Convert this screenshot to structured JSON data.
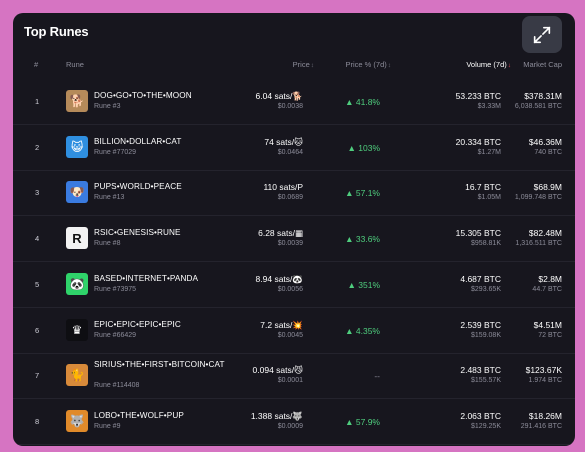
{
  "panel": {
    "title": "Top Runes"
  },
  "columns": {
    "rank": "#",
    "rune": "Rune",
    "price": "Price",
    "price_pct": "Price % (7d)",
    "volume": "Volume (7d)",
    "market_cap": "Market Cap"
  },
  "rows": [
    {
      "rank": "1",
      "name": "DOG•GO•TO•THE•MOON",
      "number": "Rune #3",
      "price": "6.04 sats/🐕",
      "price_usd": "$0.0038",
      "change": "▲ 41.8%",
      "volume": "53.233 BTC",
      "volume_usd": "$3.33M",
      "market_cap": "$378.31M",
      "cap_sub": "6,038.581 BTC",
      "logo_icon": "dog-icon",
      "logo_glyph": "🐕",
      "logo_bg": "#b58a5a"
    },
    {
      "rank": "2",
      "name": "BILLION•DOLLAR•CAT",
      "number": "Rune #77029",
      "price": "74 sats/🐱",
      "price_usd": "$0.0464",
      "change": "▲ 103%",
      "volume": "20.334 BTC",
      "volume_usd": "$1.27M",
      "market_cap": "$46.36M",
      "cap_sub": "740 BTC",
      "logo_icon": "cat-glasses-icon",
      "logo_glyph": "😺",
      "logo_bg": "#2f8fe0"
    },
    {
      "rank": "3",
      "name": "PUPS•WORLD•PEACE",
      "number": "Rune #13",
      "price": "110 sats/P",
      "price_usd": "$0.0689",
      "change": "▲ 57.1%",
      "volume": "16.7 BTC",
      "volume_usd": "$1.05M",
      "market_cap": "$68.9M",
      "cap_sub": "1,099.748 BTC",
      "logo_icon": "pup-icon",
      "logo_glyph": "🐶",
      "logo_bg": "#3a7be0"
    },
    {
      "rank": "4",
      "name": "RSIC•GENESIS•RUNE",
      "number": "Rune #8",
      "price": "6.28 sats/▦",
      "price_usd": "$0.0039",
      "change": "▲ 33.6%",
      "volume": "15.305 BTC",
      "volume_usd": "$958.81K",
      "market_cap": "$82.48M",
      "cap_sub": "1,316.511 BTC",
      "logo_icon": "rsic-r-icon",
      "logo_glyph": "R",
      "logo_bg": "#f2f2f2"
    },
    {
      "rank": "5",
      "name": "BASED•INTERNET•PANDA",
      "number": "Rune #73975",
      "price": "8.94 sats/🐼",
      "price_usd": "$0.0056",
      "change": "▲ 351%",
      "volume": "4.687 BTC",
      "volume_usd": "$293.65K",
      "market_cap": "$2.8M",
      "cap_sub": "44.7 BTC",
      "logo_icon": "panda-icon",
      "logo_glyph": "🐼",
      "logo_bg": "#2fd36a"
    },
    {
      "rank": "6",
      "name": "EPIC•EPIC•EPIC•EPIC",
      "number": "Rune #66429",
      "price": "7.2 sats/💥",
      "price_usd": "$0.0045",
      "change": "▲ 4.35%",
      "volume": "2.539 BTC",
      "volume_usd": "$159.08K",
      "market_cap": "$4.51M",
      "cap_sub": "72 BTC",
      "logo_icon": "crown-icon",
      "logo_glyph": "♛",
      "logo_bg": "#0e0e12"
    },
    {
      "rank": "7",
      "name": "SIRIUS•THE•FIRST•BITCOIN•CAT",
      "number": "Rune #114408",
      "price": "0.094 sats/😼",
      "price_usd": "$0.0001",
      "change": "--",
      "volume": "2.483 BTC",
      "volume_usd": "$155.57K",
      "market_cap": "$123.67K",
      "cap_sub": "1.974 BTC",
      "logo_icon": "cat-icon",
      "logo_glyph": "🐈",
      "logo_bg": "#d88a3a"
    },
    {
      "rank": "8",
      "name": "LOBO•THE•WOLF•PUP",
      "number": "Rune #9",
      "price": "1.388 sats/🐺",
      "price_usd": "$0.0009",
      "change": "▲ 57.9%",
      "volume": "2.063 BTC",
      "volume_usd": "$129.25K",
      "market_cap": "$18.26M",
      "cap_sub": "291.416 BTC",
      "logo_icon": "wolf-icon",
      "logo_glyph": "🐺",
      "logo_bg": "#e08a2a"
    }
  ],
  "colors": {
    "up": "#4fce7e",
    "sort_active": "#e84a5f",
    "panel_bg": "#17161e"
  }
}
